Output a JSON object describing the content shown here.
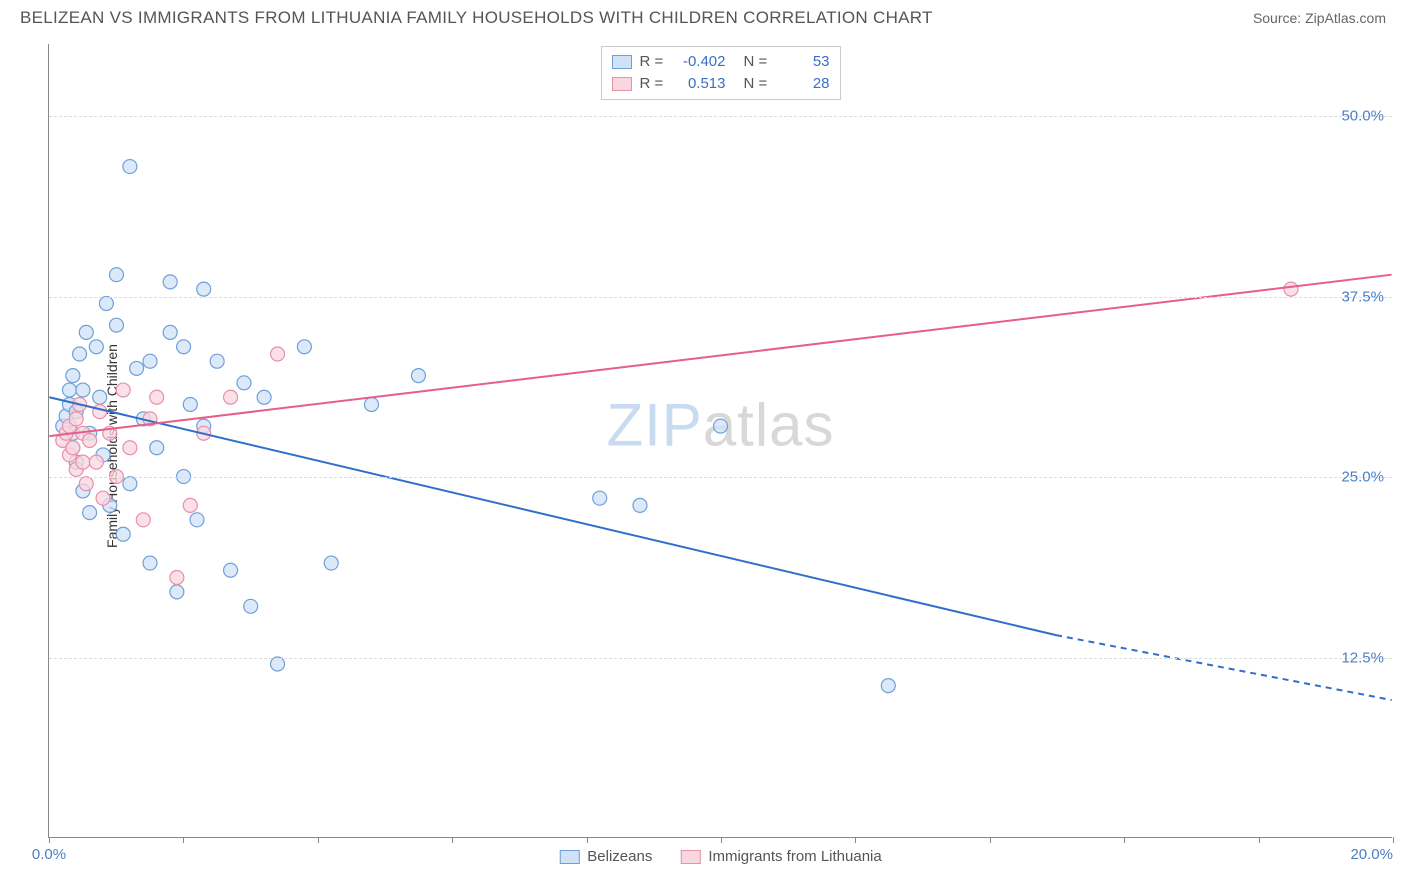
{
  "header": {
    "title": "BELIZEAN VS IMMIGRANTS FROM LITHUANIA FAMILY HOUSEHOLDS WITH CHILDREN CORRELATION CHART",
    "source": "Source: ZipAtlas.com"
  },
  "chart": {
    "type": "scatter",
    "ylabel": "Family Households with Children",
    "background_color": "#ffffff",
    "grid_color": "#dddddd",
    "axis_color": "#888888",
    "text_color": "#555555",
    "value_color": "#4a7ec9",
    "xlim": [
      0,
      20
    ],
    "ylim": [
      0,
      55
    ],
    "xticks": [
      0,
      2,
      4,
      6,
      8,
      10,
      12,
      14,
      16,
      18,
      20
    ],
    "xtick_labels_shown": {
      "0": "0.0%",
      "20": "20.0%"
    },
    "ygrid": [
      12.5,
      25.0,
      37.5,
      50.0
    ],
    "ytick_labels": [
      "12.5%",
      "25.0%",
      "37.5%",
      "50.0%"
    ],
    "watermark": {
      "zip": "ZIP",
      "atlas": "atlas",
      "zip_color": "#c9dbf0",
      "atlas_color": "#d8d8d8",
      "fontsize": 60
    },
    "series": [
      {
        "name": "Belizeans",
        "marker_fill": "#cfe2f7",
        "marker_stroke": "#6fa0d8",
        "marker_radius": 7,
        "line_color": "#2f6fc9",
        "line_width": 2,
        "R": "-0.402",
        "N": "53",
        "regression": {
          "x1": 0,
          "y1": 30.5,
          "x2_solid": 15.0,
          "y2_solid": 14.0,
          "x2": 20,
          "y2": 9.5
        },
        "points": [
          [
            0.2,
            28.5
          ],
          [
            0.25,
            29.2
          ],
          [
            0.3,
            30.0
          ],
          [
            0.3,
            31.0
          ],
          [
            0.35,
            27.0
          ],
          [
            0.35,
            28.0
          ],
          [
            0.35,
            32.0
          ],
          [
            0.4,
            26.0
          ],
          [
            0.4,
            29.5
          ],
          [
            0.45,
            33.5
          ],
          [
            0.5,
            31.0
          ],
          [
            0.5,
            24.0
          ],
          [
            0.55,
            35.0
          ],
          [
            0.6,
            22.5
          ],
          [
            0.6,
            28.0
          ],
          [
            0.7,
            34.0
          ],
          [
            0.75,
            30.5
          ],
          [
            0.8,
            26.5
          ],
          [
            0.85,
            37.0
          ],
          [
            0.9,
            23.0
          ],
          [
            1.0,
            35.5
          ],
          [
            1.0,
            39.0
          ],
          [
            1.1,
            21.0
          ],
          [
            1.2,
            24.5
          ],
          [
            1.2,
            46.5
          ],
          [
            1.3,
            32.5
          ],
          [
            1.4,
            29.0
          ],
          [
            1.5,
            33.0
          ],
          [
            1.5,
            19.0
          ],
          [
            1.6,
            27.0
          ],
          [
            1.8,
            35.0
          ],
          [
            1.8,
            38.5
          ],
          [
            1.9,
            17.0
          ],
          [
            2.0,
            34.0
          ],
          [
            2.0,
            25.0
          ],
          [
            2.1,
            30.0
          ],
          [
            2.2,
            22.0
          ],
          [
            2.3,
            28.5
          ],
          [
            2.3,
            38.0
          ],
          [
            2.5,
            33.0
          ],
          [
            2.7,
            18.5
          ],
          [
            2.9,
            31.5
          ],
          [
            3.0,
            16.0
          ],
          [
            3.2,
            30.5
          ],
          [
            3.4,
            12.0
          ],
          [
            3.8,
            34.0
          ],
          [
            4.2,
            19.0
          ],
          [
            4.8,
            30.0
          ],
          [
            5.5,
            32.0
          ],
          [
            8.2,
            23.5
          ],
          [
            8.8,
            23.0
          ],
          [
            10.0,
            28.5
          ],
          [
            12.5,
            10.5
          ]
        ]
      },
      {
        "name": "Immigrants from Lithuania",
        "marker_fill": "#f8d7e0",
        "marker_stroke": "#e98fa8",
        "marker_radius": 7,
        "line_color": "#e65f8a",
        "line_width": 2,
        "R": "0.513",
        "N": "28",
        "regression": {
          "x1": 0,
          "y1": 27.8,
          "x2_solid": 20,
          "y2_solid": 39.0,
          "x2": 20,
          "y2": 39.0
        },
        "points": [
          [
            0.2,
            27.5
          ],
          [
            0.25,
            28.0
          ],
          [
            0.3,
            26.5
          ],
          [
            0.3,
            28.5
          ],
          [
            0.35,
            27.0
          ],
          [
            0.4,
            29.0
          ],
          [
            0.4,
            25.5
          ],
          [
            0.45,
            30.0
          ],
          [
            0.5,
            26.0
          ],
          [
            0.5,
            28.0
          ],
          [
            0.55,
            24.5
          ],
          [
            0.6,
            27.5
          ],
          [
            0.7,
            26.0
          ],
          [
            0.75,
            29.5
          ],
          [
            0.8,
            23.5
          ],
          [
            0.9,
            28.0
          ],
          [
            1.0,
            25.0
          ],
          [
            1.1,
            31.0
          ],
          [
            1.2,
            27.0
          ],
          [
            1.4,
            22.0
          ],
          [
            1.5,
            29.0
          ],
          [
            1.6,
            30.5
          ],
          [
            1.9,
            18.0
          ],
          [
            2.1,
            23.0
          ],
          [
            2.3,
            28.0
          ],
          [
            2.7,
            30.5
          ],
          [
            3.4,
            33.5
          ],
          [
            18.5,
            38.0
          ]
        ]
      }
    ],
    "legend_bottom": [
      {
        "label": "Belizeans",
        "fill": "#cfe2f7",
        "stroke": "#6fa0d8"
      },
      {
        "label": "Immigrants from Lithuania",
        "fill": "#f8d7e0",
        "stroke": "#e98fa8"
      }
    ]
  }
}
